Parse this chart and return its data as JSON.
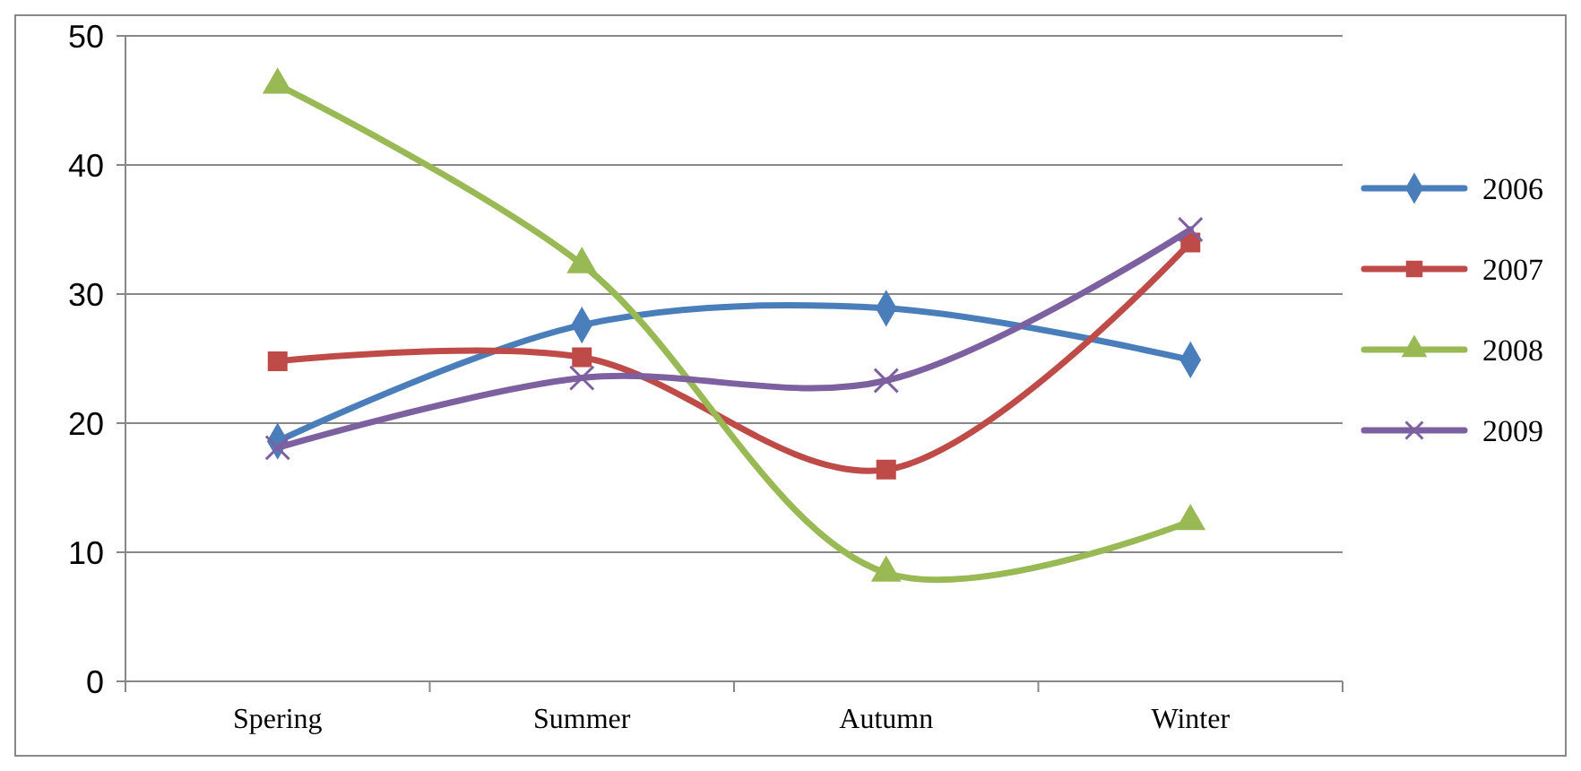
{
  "chart_data": {
    "type": "line",
    "categories": [
      "Spering",
      "Summer",
      "Autumn",
      "Winter"
    ],
    "series": [
      {
        "name": "2006",
        "color": "#4a7ebb",
        "marker": "diamond",
        "values": [
          18.6,
          27.6,
          28.9,
          24.9
        ]
      },
      {
        "name": "2007",
        "color": "#be4b48",
        "marker": "square",
        "values": [
          24.8,
          25.1,
          16.4,
          34.0
        ]
      },
      {
        "name": "2008",
        "color": "#98b954",
        "marker": "triangle",
        "values": [
          46.2,
          32.3,
          8.4,
          12.4
        ]
      },
      {
        "name": "2009",
        "color": "#7d60a0",
        "marker": "cross",
        "values": [
          18.1,
          23.5,
          23.3,
          35.0
        ]
      }
    ],
    "ylim": [
      0,
      50
    ],
    "yticks": [
      0,
      10,
      20,
      30,
      40,
      50
    ],
    "grid": "y",
    "legend": "right",
    "line_style": "solid"
  }
}
